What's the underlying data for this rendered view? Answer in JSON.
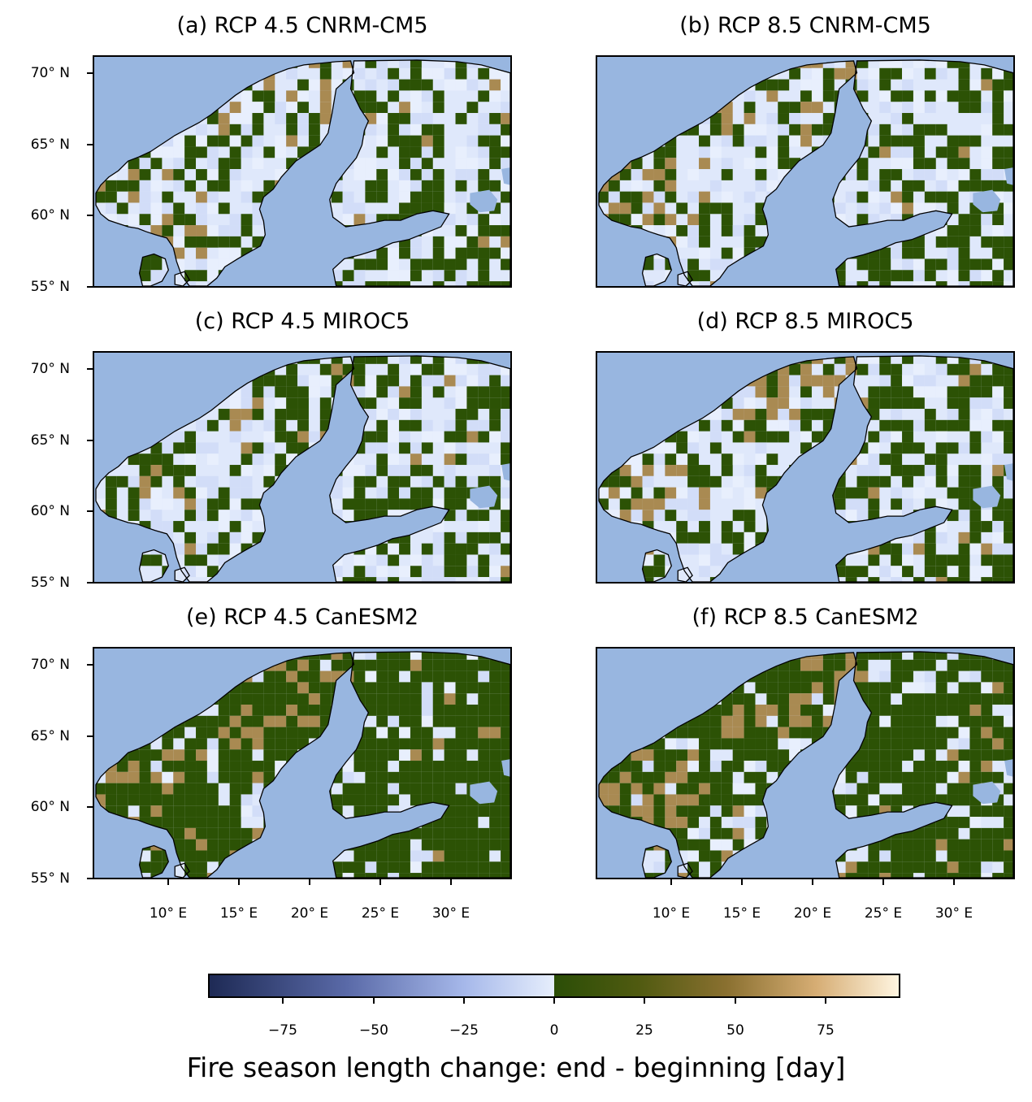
{
  "panels": [
    {
      "id": "a",
      "title": "(a) RCP 4.5 CNRM-CM5"
    },
    {
      "id": "b",
      "title": "(b) RCP 8.5 CNRM-CM5"
    },
    {
      "id": "c",
      "title": "(c) RCP 4.5 MIROC5"
    },
    {
      "id": "d",
      "title": "(d) RCP 8.5 MIROC5"
    },
    {
      "id": "e",
      "title": "(e) RCP 4.5 CanESM2"
    },
    {
      "id": "f",
      "title": "(f) RCP 8.5 CanESM2"
    }
  ],
  "axes": {
    "lat_ticks": [
      "70° N",
      "65° N",
      "60° N",
      "55° N"
    ],
    "lon_ticks": [
      "10° E",
      "15° E",
      "20° E",
      "25° E",
      "30° E"
    ]
  },
  "colorbar": {
    "label": "Fire season length change: end - beginning [day]",
    "ticks": [
      "−75",
      "−50",
      "−25",
      "0",
      "25",
      "50",
      "75"
    ],
    "range": [
      -95,
      95
    ],
    "colors": {
      "negative": [
        "#1e2a55",
        "#5a6aa8",
        "#a6b8ea",
        "#e6eefc"
      ],
      "positive": [
        "#2b4e07",
        "#4f5a10",
        "#8a7030",
        "#d6ad74",
        "#fff5e0"
      ]
    }
  },
  "map_colors": {
    "ocean": "#98b6e0",
    "land_light": "#dfe8fb",
    "green": "#2c5205",
    "tan": "#a98a52"
  }
}
